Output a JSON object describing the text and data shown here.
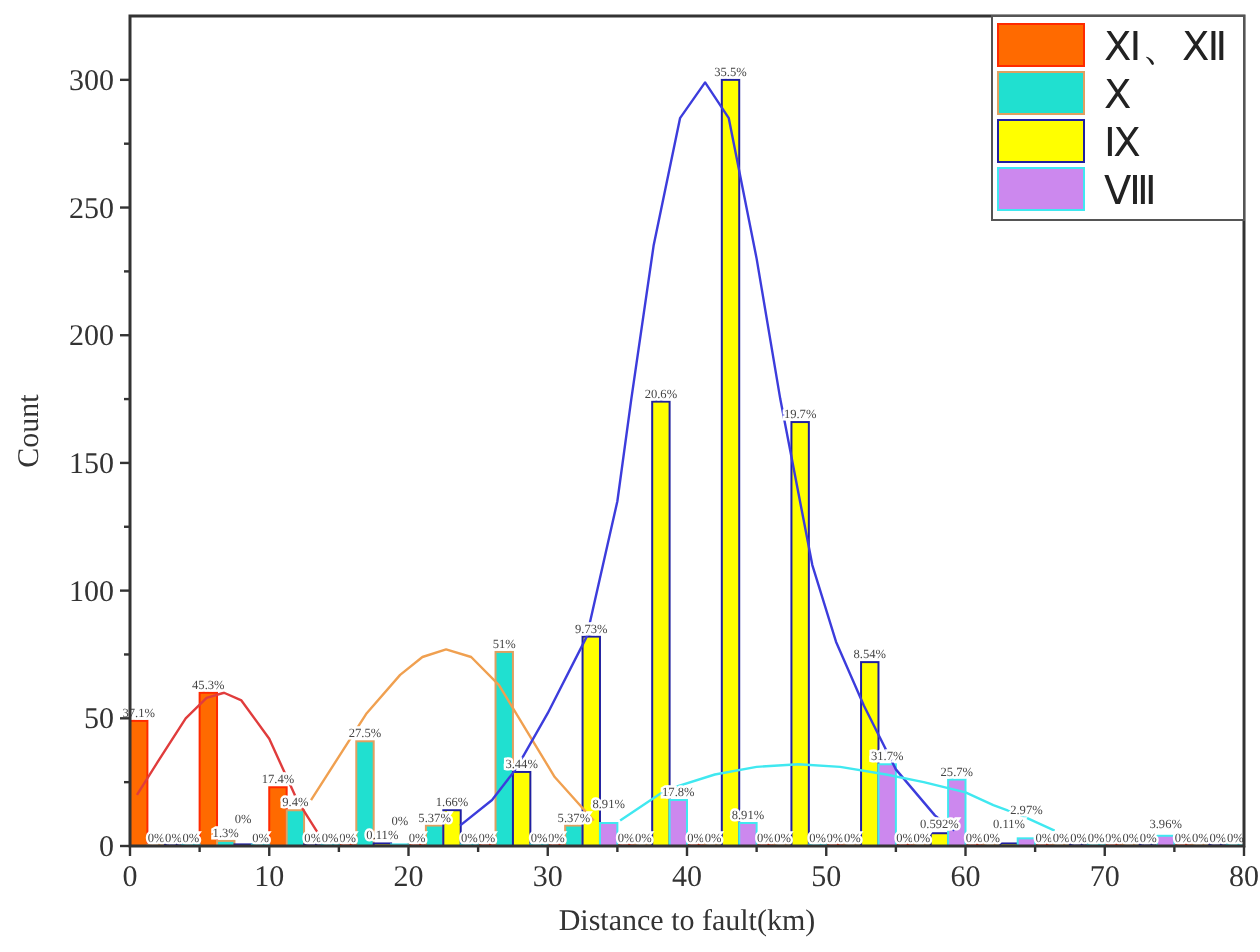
{
  "chart_data": {
    "type": "histogram",
    "xlabel": "Distance to fault(km)",
    "ylabel": "Count",
    "legend": "top right",
    "bins": [
      0,
      5,
      10,
      15,
      20,
      25,
      30,
      35,
      40,
      45,
      50,
      55,
      60,
      65,
      70,
      75,
      80
    ],
    "xlim": [
      0,
      80
    ],
    "xticks": [
      0,
      {
        "value": 5,
        "label": null
      },
      10,
      {
        "value": 15,
        "label": null
      },
      20,
      {
        "value": 25,
        "label": null
      },
      30,
      {
        "value": 35,
        "label": null
      },
      40,
      {
        "value": 45,
        "label": null
      },
      50,
      {
        "value": 55,
        "label": null
      },
      60,
      {
        "value": 65,
        "label": null
      },
      70,
      {
        "value": 75,
        "label": null
      },
      80
    ],
    "ylim": [
      0,
      325
    ],
    "yticks": [
      0,
      {
        "value": 25,
        "label": null
      },
      50,
      {
        "value": 75,
        "label": null
      },
      100,
      {
        "value": 125,
        "label": null
      },
      150,
      {
        "value": 175,
        "label": null
      },
      200,
      {
        "value": 225,
        "label": null
      },
      250,
      {
        "value": 275,
        "label": null
      },
      300
    ],
    "series": [
      {
        "name": "Ⅺ、Ⅻ",
        "color": "#ff6a00",
        "values": [
          49,
          60,
          23,
          0,
          0,
          0,
          0,
          0,
          0,
          0,
          0,
          0,
          0,
          0,
          0,
          0
        ]
      },
      {
        "name": "Ⅹ",
        "color": "#20e0d0",
        "values": [
          0,
          2,
          14,
          41,
          8,
          76,
          8,
          0,
          0,
          0,
          0,
          0,
          0,
          0,
          0,
          0
        ]
      },
      {
        "name": "Ⅸ",
        "color": "#ffff00",
        "values": [
          0,
          0,
          0,
          1,
          14,
          29,
          82,
          174,
          300,
          166,
          72,
          5,
          1,
          0,
          0,
          0
        ]
      },
      {
        "name": "Ⅷ",
        "color": "#cc88ee",
        "values": [
          0,
          0,
          0,
          0,
          0,
          0,
          9,
          18,
          9,
          0,
          32,
          26,
          3,
          0,
          4,
          0
        ]
      },
      {
        "type": "line",
        "color": "#e03c3c",
        "x": [
          0.5,
          2,
          4,
          5.5,
          6.75,
          8,
          10,
          12,
          13.5
        ],
        "values": [
          20,
          33,
          50,
          58,
          60,
          57,
          42,
          18,
          5
        ]
      },
      {
        "type": "line",
        "color": "#f0a050",
        "x": [
          13,
          15,
          17,
          19.4,
          21,
          22.7,
          24.5,
          26.5,
          28.5,
          30.5,
          33.3
        ],
        "values": [
          18,
          35,
          52,
          67,
          74,
          77,
          74,
          63,
          45,
          27,
          10
        ]
      },
      {
        "type": "line",
        "color": "#3c3cdc",
        "x": [
          23.7,
          26,
          27.7,
          30,
          32.8,
          35,
          36,
          37.6,
          39.5,
          41.3,
          43,
          45,
          46.7,
          49,
          50.7,
          52.7,
          55,
          57.8,
          59.2
        ],
        "values": [
          8,
          18,
          30,
          52,
          82,
          135,
          175,
          235,
          285,
          299,
          285,
          230,
          175,
          110,
          80,
          55,
          30,
          12,
          6
        ]
      },
      {
        "type": "line",
        "color": "#40e8f0",
        "x": [
          35.2,
          38.5,
          42,
          45,
          48,
          51,
          54.3,
          57,
          60,
          62,
          64,
          66.4
        ],
        "values": [
          10,
          22,
          28,
          31,
          32,
          31,
          28,
          25,
          21,
          16,
          12,
          6
        ]
      }
    ],
    "annotations": [
      {
        "text": "37.1%",
        "x": 0.625,
        "y": 49
      },
      {
        "text": "45.3%",
        "x": 5.625,
        "y": 60
      },
      {
        "text": "17.4%",
        "x": 10.625,
        "y": 23
      },
      {
        "text": "0%",
        "x": 15.625,
        "y": 0
      },
      {
        "text": "0%",
        "x": 20.625,
        "y": 0
      },
      {
        "text": "0%",
        "x": 25.625,
        "y": 0
      },
      {
        "text": "0%",
        "x": 30.625,
        "y": 0
      },
      {
        "text": "0%",
        "x": 35.625,
        "y": 0
      },
      {
        "text": "0%",
        "x": 40.625,
        "y": 0
      },
      {
        "text": "0%",
        "x": 45.625,
        "y": 0
      },
      {
        "text": "0%",
        "x": 50.625,
        "y": 0
      },
      {
        "text": "0%",
        "x": 55.625,
        "y": 0
      },
      {
        "text": "0%",
        "x": 60.625,
        "y": 0
      },
      {
        "text": "0%",
        "x": 65.625,
        "y": 0
      },
      {
        "text": "0%",
        "x": 70.625,
        "y": 0
      },
      {
        "text": "0%",
        "x": 75.625,
        "y": 0
      },
      {
        "text": "0%",
        "x": 1.875,
        "y": 0
      },
      {
        "text": "1.3%",
        "x": 6.875,
        "y": 2
      },
      {
        "text": "9.4%",
        "x": 11.875,
        "y": 14
      },
      {
        "text": "27.5%",
        "x": 16.875,
        "y": 41
      },
      {
        "text": "5.37%",
        "x": 21.875,
        "y": 8
      },
      {
        "text": "51%",
        "x": 26.875,
        "y": 76
      },
      {
        "text": "5.37%",
        "x": 31.875,
        "y": 8
      },
      {
        "text": "0%",
        "x": 36.875,
        "y": 0
      },
      {
        "text": "0%",
        "x": 41.875,
        "y": 0
      },
      {
        "text": "0%",
        "x": 46.875,
        "y": 0
      },
      {
        "text": "0%",
        "x": 51.875,
        "y": 0
      },
      {
        "text": "0%",
        "x": 56.875,
        "y": 0
      },
      {
        "text": "0%",
        "x": 61.875,
        "y": 0
      },
      {
        "text": "0%",
        "x": 66.875,
        "y": 0
      },
      {
        "text": "0%",
        "x": 71.875,
        "y": 0
      },
      {
        "text": "0%",
        "x": 76.875,
        "y": 0
      },
      {
        "text": "0%",
        "x": 3.125,
        "y": 0
      },
      {
        "text": "0%",
        "x": 8.125,
        "y": 0
      },
      {
        "text": "0%",
        "x": 13.125,
        "y": 0
      },
      {
        "text": "0.11%",
        "x": 18.125,
        "y": 1
      },
      {
        "text": "1.66%",
        "x": 23.125,
        "y": 14
      },
      {
        "text": "3.44%",
        "x": 28.125,
        "y": 29
      },
      {
        "text": "9.73%",
        "x": 33.125,
        "y": 82
      },
      {
        "text": "20.6%",
        "x": 38.125,
        "y": 174
      },
      {
        "text": "35.5%",
        "x": 43.125,
        "y": 300
      },
      {
        "text": "19.7%",
        "x": 48.125,
        "y": 166
      },
      {
        "text": "8.54%",
        "x": 53.125,
        "y": 72
      },
      {
        "text": "0.592%",
        "x": 58.125,
        "y": 5
      },
      {
        "text": "0.11%",
        "x": 63.125,
        "y": 1
      },
      {
        "text": "0%",
        "x": 68.125,
        "y": 0
      },
      {
        "text": "0%",
        "x": 73.125,
        "y": 0
      },
      {
        "text": "0%",
        "x": 78.125,
        "y": 0
      },
      {
        "text": "0%",
        "x": 4.375,
        "y": 0
      },
      {
        "text": "0%",
        "x": 9.375,
        "y": 0
      },
      {
        "text": "0%",
        "x": 14.375,
        "y": 0
      },
      {
        "text": "0%",
        "x": 19.375,
        "y": 0
      },
      {
        "text": "0%",
        "x": 24.375,
        "y": 0
      },
      {
        "text": "0%",
        "x": 29.375,
        "y": 0
      },
      {
        "text": "8.91%",
        "x": 34.375,
        "y": 9
      },
      {
        "text": "17.8%",
        "x": 39.375,
        "y": 18
      },
      {
        "text": "8.91%",
        "x": 44.375,
        "y": 9
      },
      {
        "text": "0%",
        "x": 49.375,
        "y": 0
      },
      {
        "text": "31.7%",
        "x": 54.375,
        "y": 32
      },
      {
        "text": "25.7%",
        "x": 59.375,
        "y": 26
      },
      {
        "text": "2.97%",
        "x": 64.375,
        "y": 3
      },
      {
        "text": "0%",
        "x": 69.375,
        "y": 0
      },
      {
        "text": "3.96%",
        "x": 74.375,
        "y": 4
      },
      {
        "text": "0%",
        "x": 79.375,
        "y": 0
      }
    ]
  }
}
